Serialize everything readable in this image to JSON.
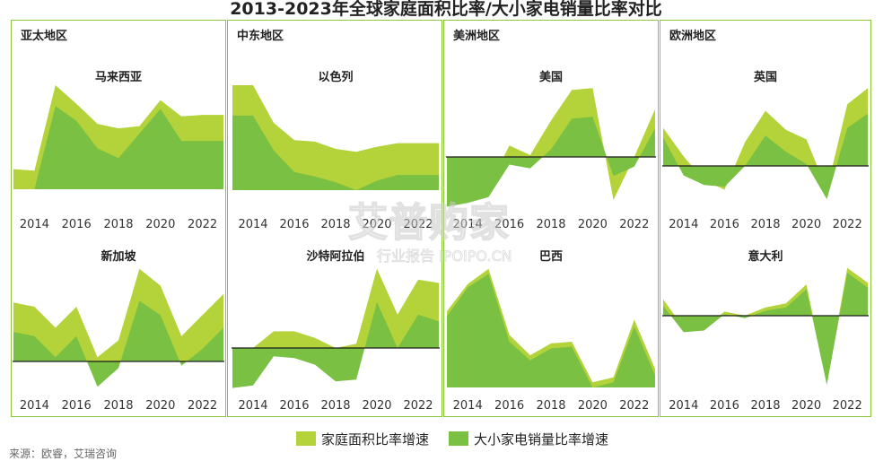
{
  "title": "2013-2023年全球家庭面积比率/大小家电销量比率对比",
  "regions": [
    {
      "label": "亚太地区"
    },
    {
      "label": "中东地区"
    },
    {
      "label": "美洲地区"
    },
    {
      "label": "欧洲地区"
    }
  ],
  "legend": {
    "series_a": "家庭面积比率增速",
    "series_b": "大小家电销量比率增速"
  },
  "colors": {
    "series_a": "#b4d33a",
    "series_b": "#7ac143",
    "border": "#8cc63f",
    "zero_line": "#1a1a1a"
  },
  "source": "来源：欧睿，艾瑞咨询",
  "watermark": {
    "main": "艾普购家",
    "sub": "行业报告 IPOIPO.CN"
  },
  "chart_data": [
    {
      "type": "area",
      "name": "马来西亚",
      "x_ticks": [
        "2014",
        "2016",
        "2018",
        "2020",
        "2022"
      ],
      "x": [
        2013,
        2014,
        2015,
        2016,
        2017,
        2018,
        2019,
        2020,
        2021,
        2022,
        2023
      ],
      "series": [
        {
          "name": "家庭面积比率增速",
          "values": [
            -3,
            -5,
            110,
            85,
            58,
            52,
            55,
            90,
            68,
            70,
            70
          ]
        },
        {
          "name": "大小家电销量比率增速",
          "values": [
            -30,
            -30,
            82,
            62,
            25,
            12,
            45,
            78,
            35,
            35,
            35
          ]
        }
      ]
    },
    {
      "type": "area",
      "name": "以色列",
      "x_ticks": [
        "2014",
        "2016",
        "2018",
        "2020",
        "2022"
      ],
      "x": [
        2013,
        2014,
        2015,
        2016,
        2017,
        2018,
        2019,
        2020,
        2021,
        2022,
        2023
      ],
      "series": [
        {
          "name": "家庭面积比率增速",
          "values": [
            140,
            140,
            88,
            64,
            62,
            52,
            48,
            55,
            60,
            60,
            60
          ]
        },
        {
          "name": "大小家电销量比率增速",
          "values": [
            98,
            98,
            50,
            20,
            14,
            6,
            -5,
            8,
            16,
            16,
            16
          ]
        }
      ]
    },
    {
      "type": "area",
      "name": "美国",
      "x_ticks": [
        "2014",
        "2016",
        "2018",
        "2020",
        "2022"
      ],
      "x": [
        2013,
        2014,
        2015,
        2016,
        2017,
        2018,
        2019,
        2020,
        2021,
        2022,
        2023
      ],
      "series": [
        {
          "name": "家庭面积比率增速",
          "values": [
            -38,
            -28,
            -32,
            12,
            2,
            38,
            70,
            72,
            -45,
            0,
            50
          ]
        },
        {
          "name": "大小家电销量比率增速",
          "values": [
            -52,
            -48,
            -42,
            -8,
            -12,
            8,
            40,
            42,
            -20,
            -10,
            30
          ]
        }
      ]
    },
    {
      "type": "area",
      "name": "英国",
      "x_ticks": [
        "2014",
        "2016",
        "2018",
        "2020",
        "2022"
      ],
      "x": [
        2013,
        2014,
        2015,
        2016,
        2017,
        2018,
        2019,
        2020,
        2021,
        2022,
        2023
      ],
      "series": [
        {
          "name": "家庭面积比率增速",
          "values": [
            40,
            10,
            -15,
            -25,
            25,
            58,
            38,
            28,
            -25,
            65,
            82
          ]
        },
        {
          "name": "大小家电销量比率增速",
          "values": [
            30,
            -10,
            -20,
            -22,
            0,
            32,
            15,
            2,
            -35,
            40,
            55
          ]
        }
      ]
    },
    {
      "type": "area",
      "name": "新加坡",
      "x_ticks": [
        "2014",
        "2016",
        "2018",
        "2020",
        "2022"
      ],
      "x": [
        2013,
        2014,
        2015,
        2016,
        2017,
        2018,
        2019,
        2020,
        2021,
        2022,
        2023
      ],
      "series": [
        {
          "name": "家庭面积比率增速",
          "values": [
            70,
            65,
            40,
            65,
            5,
            25,
            110,
            90,
            30,
            55,
            80
          ]
        },
        {
          "name": "大小家电销量比率增速",
          "values": [
            35,
            30,
            5,
            30,
            -30,
            -8,
            72,
            55,
            -5,
            15,
            40
          ]
        }
      ]
    },
    {
      "type": "area",
      "name": "沙特阿拉伯",
      "x_ticks": [
        "2014",
        "2016",
        "2018",
        "2020",
        "2022"
      ],
      "x": [
        2013,
        2014,
        2015,
        2016,
        2017,
        2018,
        2019,
        2020,
        2021,
        2022,
        2023
      ],
      "series": [
        {
          "name": "家庭面积比率增速",
          "values": [
            0,
            0,
            20,
            20,
            12,
            0,
            5,
            95,
            40,
            82,
            78
          ]
        },
        {
          "name": "大小家电销量比率增速",
          "values": [
            -48,
            -45,
            -10,
            -12,
            -20,
            -40,
            -38,
            55,
            0,
            40,
            32
          ]
        }
      ]
    },
    {
      "type": "area",
      "name": "巴西",
      "x_ticks": [
        "2014",
        "2016",
        "2018",
        "2020",
        "2022"
      ],
      "x": [
        2013,
        2014,
        2015,
        2016,
        2017,
        2018,
        2019,
        2020,
        2021,
        2022,
        2023
      ],
      "series": [
        {
          "name": "家庭面积比率增速",
          "values": [
            90,
            122,
            140,
            62,
            38,
            52,
            54,
            6,
            12,
            80,
            22
          ]
        },
        {
          "name": "大小家电销量比率增速",
          "values": [
            84,
            118,
            134,
            54,
            32,
            46,
            48,
            0,
            6,
            72,
            14
          ]
        }
      ]
    },
    {
      "type": "area",
      "name": "意大利",
      "x_ticks": [
        "2014",
        "2016",
        "2018",
        "2020",
        "2022"
      ],
      "x": [
        2013,
        2014,
        2015,
        2016,
        2017,
        2018,
        2019,
        2020,
        2021,
        2022,
        2023
      ],
      "series": [
        {
          "name": "家庭面积比率增速",
          "values": [
            20,
            -15,
            -15,
            5,
            0,
            10,
            15,
            38,
            -80,
            58,
            40
          ]
        },
        {
          "name": "大小家电销量比率增速",
          "values": [
            12,
            -20,
            -18,
            2,
            -3,
            6,
            10,
            32,
            -84,
            52,
            34
          ]
        }
      ]
    }
  ]
}
